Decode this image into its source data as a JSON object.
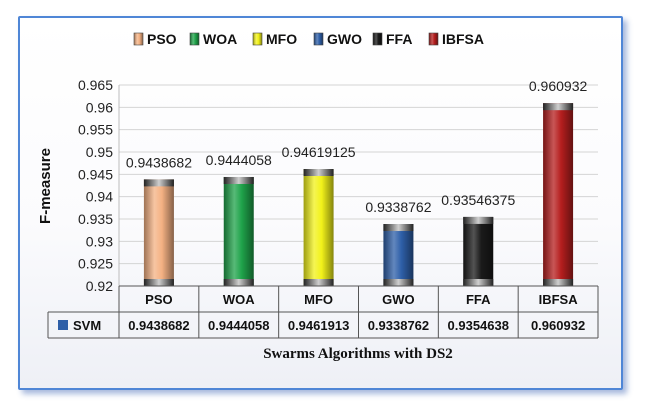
{
  "chart_data": {
    "type": "bar",
    "categories": [
      "PSO",
      "WOA",
      "MFO",
      "GWO",
      "FFA",
      "IBFSA"
    ],
    "values": [
      0.9438682,
      0.9444058,
      0.94619125,
      0.9338762,
      0.93546375,
      0.960932
    ],
    "data_labels": [
      "0.9438682",
      "0.9444058",
      "0.94619125",
      "0.9338762",
      "0.93546375",
      "0.960932"
    ],
    "series": [
      {
        "name": "SVM",
        "values": [
          0.9438682,
          0.9444058,
          0.9461913,
          0.9338762,
          0.9354638,
          0.960932
        ],
        "table_labels": [
          "0.9438682",
          "0.9444058",
          "0.9461913",
          "0.9338762",
          "0.9354638",
          "0.960932"
        ]
      }
    ],
    "legend": [
      "PSO",
      "WOA",
      "MFO",
      "GWO",
      "FFA",
      "IBFSA"
    ],
    "legend_position": "top",
    "colors": [
      "#f4b183",
      "#1fa34a",
      "#f2f21a",
      "#2e5fa8",
      "#1a1a1a",
      "#b51e1e"
    ],
    "table_series_color": "#2e5fa8",
    "ylabel": "F-measure",
    "xlabel": "Swarms Algorithms with DS2",
    "ylim": [
      0.92,
      0.965
    ],
    "yticks": [
      "0.92",
      "0.925",
      "0.93",
      "0.935",
      "0.94",
      "0.945",
      "0.95",
      "0.955",
      "0.96",
      "0.965"
    ],
    "ytick_values": [
      0.92,
      0.925,
      0.93,
      0.935,
      0.94,
      0.945,
      0.95,
      0.955,
      0.96,
      0.965
    ],
    "grid": true
  }
}
